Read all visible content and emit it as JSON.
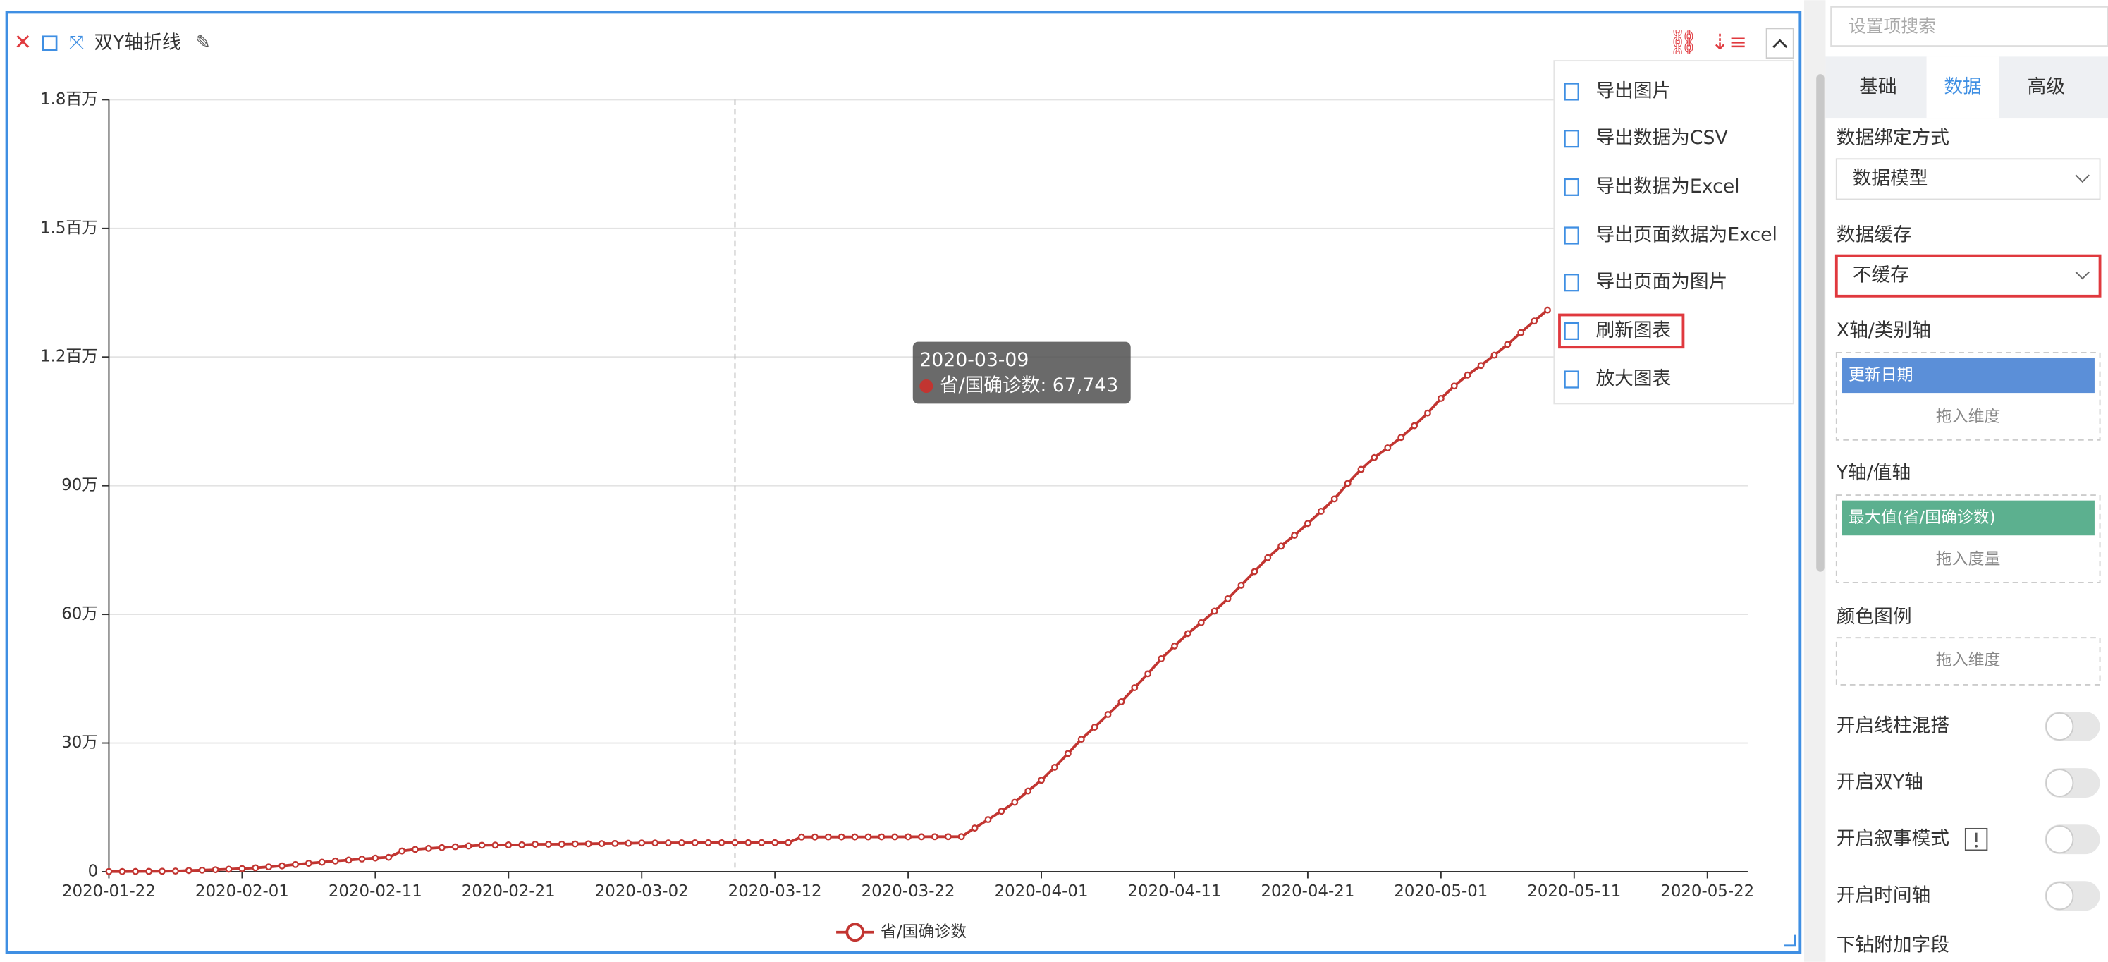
{
  "toolbar": {
    "title": "双Y轴折线"
  },
  "chart_data": {
    "type": "line",
    "categories": [
      "2020-01-22",
      null,
      null,
      null,
      null,
      null,
      null,
      null,
      null,
      null,
      "2020-02-01",
      null,
      null,
      null,
      null,
      null,
      null,
      null,
      null,
      null,
      "2020-02-11",
      null,
      null,
      null,
      null,
      null,
      null,
      null,
      null,
      null,
      "2020-02-21",
      null,
      null,
      null,
      null,
      null,
      null,
      null,
      null,
      null,
      "2020-03-02",
      null,
      null,
      null,
      null,
      null,
      null,
      null,
      null,
      null,
      "2020-03-12",
      null,
      null,
      null,
      null,
      null,
      null,
      null,
      null,
      null,
      "2020-03-22",
      null,
      null,
      null,
      null,
      null,
      null,
      null,
      null,
      null,
      "2020-04-01",
      null,
      null,
      null,
      null,
      null,
      null,
      null,
      null,
      null,
      "2020-04-11",
      null,
      null,
      null,
      null,
      null,
      null,
      null,
      null,
      null,
      "2020-04-21",
      null,
      null,
      null,
      null,
      null,
      null,
      null,
      null,
      null,
      "2020-05-01",
      null,
      null,
      null,
      null,
      null,
      null,
      null,
      null,
      null,
      "2020-05-11",
      null,
      null,
      null,
      null,
      null,
      null,
      null,
      null,
      null,
      "2020-05-22",
      null,
      null,
      null,
      null
    ],
    "series": [
      {
        "name": "省/国确诊数",
        "color": "#c23531",
        "values": [
          444,
          444,
          549,
          729,
          1052,
          1423,
          2714,
          3554,
          4586,
          5806,
          7153,
          9074,
          11177,
          13522,
          16678,
          19665,
          22112,
          24953,
          27100,
          29631,
          31728,
          33366,
          48206,
          51986,
          54406,
          56249,
          58182,
          59989,
          61682,
          62031,
          62442,
          62662,
          64084,
          64084,
          64287,
          64786,
          65187,
          65596,
          65914,
          66337,
          66907,
          67103,
          67217,
          67332,
          67466,
          67592,
          67666,
          67743,
          67760,
          67773,
          67781,
          67786,
          80977,
          81003,
          81033,
          81058,
          81102,
          81156,
          81250,
          81305,
          81435,
          81498,
          81591,
          81661,
          81782,
          101657,
          121478,
          140886,
          161807,
          188172,
          213372,
          243453,
          275586,
          308850,
          337072,
          366667,
          396223,
          429052,
          461437,
          496535,
          526396,
          555313,
          580619,
          607670,
          636350,
          667801,
          699706,
          732197,
          759086,
          784326,
          811865,
          840351,
          869170,
          905358,
          938154,
          965785,
          988197,
          1012582,
          1039909,
          1069424,
          1103461,
          1132539,
          1158040,
          1180375,
          1204351,
          1229331,
          1257023,
          1283929,
          1309550,
          null,
          null,
          null,
          null,
          null,
          null,
          null,
          null,
          null,
          null,
          null,
          null,
          null,
          null,
          null,
          null
        ]
      }
    ],
    "ylim": [
      0,
      1800000
    ],
    "yticks": [
      0,
      {
        "value": 300000,
        "label": "30万"
      },
      {
        "value": 600000,
        "label": "60万"
      },
      {
        "value": 900000,
        "label": "90万"
      },
      {
        "value": 1200000,
        "label": "1.2百万"
      },
      {
        "value": 1500000,
        "label": "1.5百万"
      },
      {
        "value": 1800000,
        "label": "1.8百万"
      }
    ],
    "grid": true,
    "legend": "bottom",
    "tooltip": {
      "title": "2020-03-09",
      "text": "省/国确诊数: 67,743"
    }
  },
  "menu": {
    "items": [
      "导出图片",
      "导出数据为CSV",
      "导出数据为Excel",
      "导出页面数据为Excel",
      "导出页面为图片",
      "刷新图表",
      "放大图表"
    ]
  },
  "sidebar": {
    "search": "设置项搜索",
    "tabs": [
      "基础",
      "数据",
      "高级"
    ],
    "binding": {
      "label": "数据绑定方式",
      "value": "数据模型"
    },
    "cache": {
      "label": "数据缓存",
      "value": "不缓存"
    },
    "x_axis": {
      "label": "X轴/类别轴",
      "field": "更新日期",
      "placeholder": "拖入维度"
    },
    "y_axis": {
      "label": "Y轴/值轴",
      "field": "最大值(省/国确诊数)",
      "placeholder": "拖入度量"
    },
    "color_legend": {
      "label": "颜色图例",
      "placeholder": "拖入维度"
    },
    "toggles": [
      "开启线柱混搭",
      "开启双Y轴",
      "开启叙事模式",
      "开启时间轴"
    ],
    "drill_label": "下钻附加字段"
  }
}
